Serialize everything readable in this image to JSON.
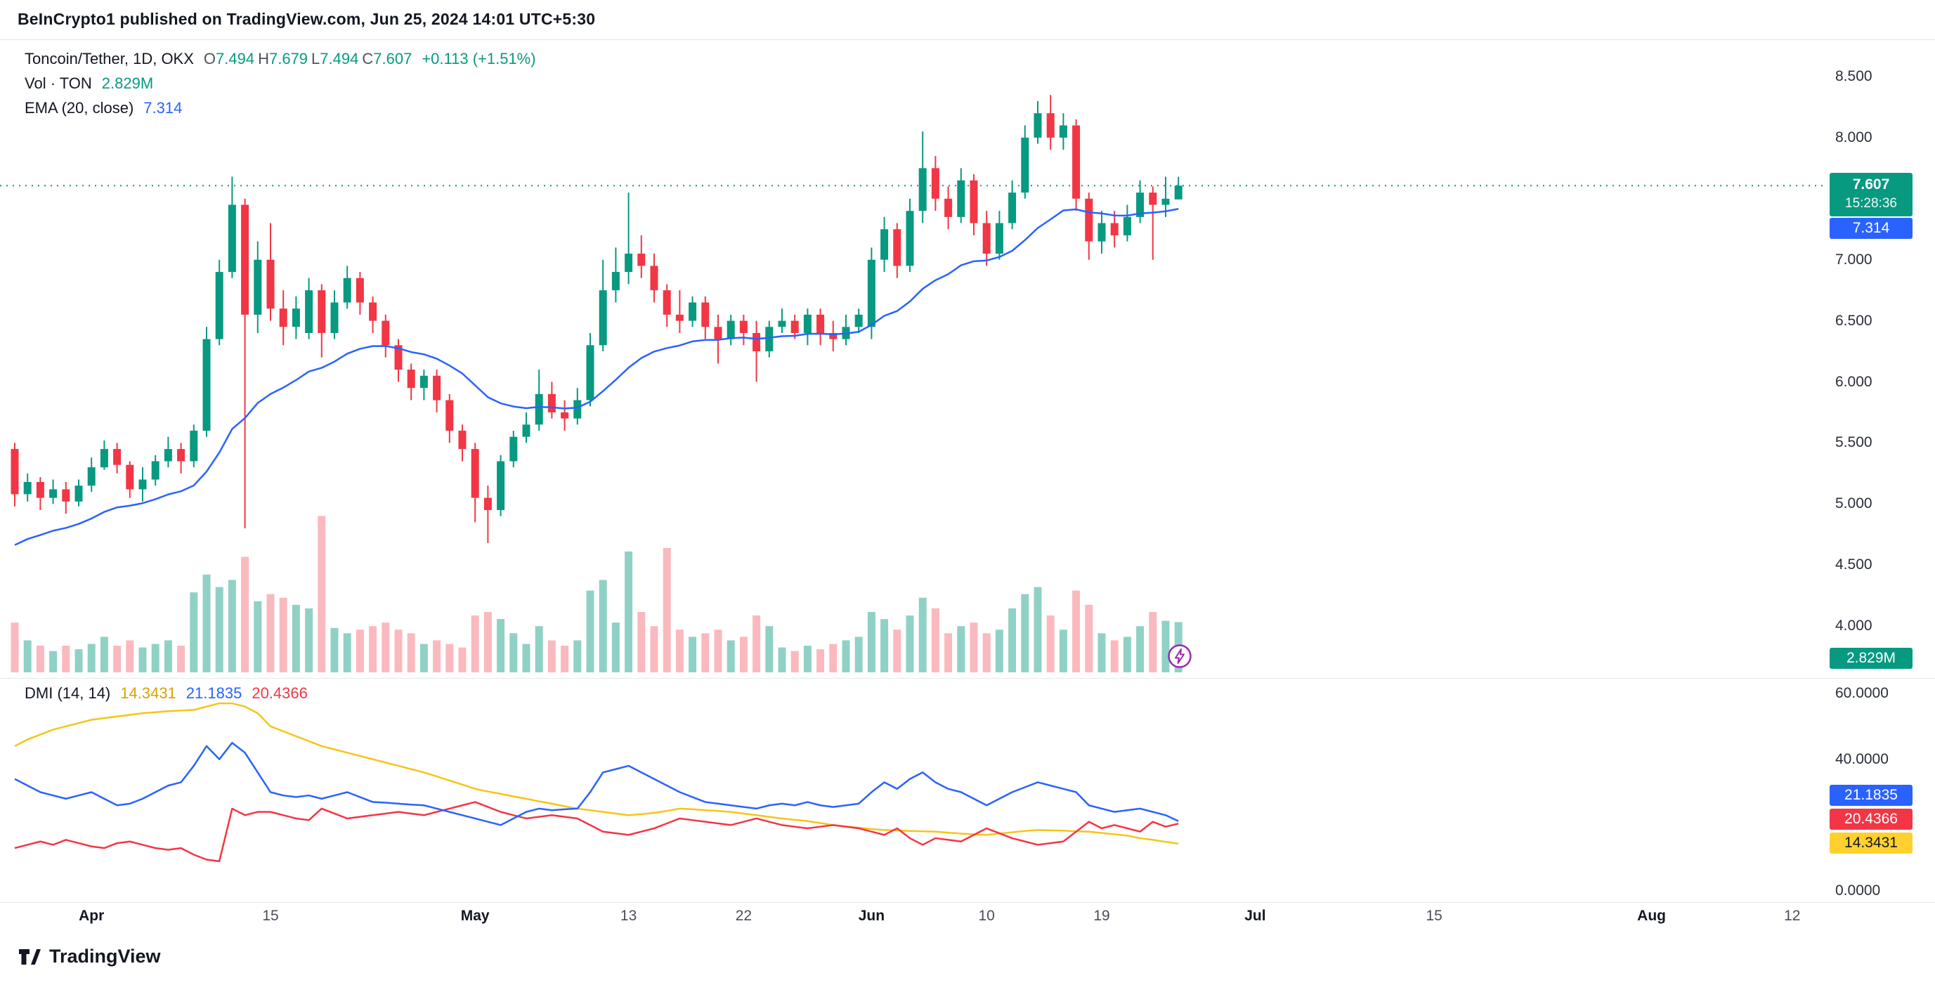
{
  "header": {
    "text": "BeInCrypto1 published on TradingView.com, Jun 25, 2024 14:01 UTC+5:30"
  },
  "legend": {
    "symbol": "Toncoin/Tether, 1D, OKX",
    "o_label": "O",
    "o": "7.494",
    "h_label": "H",
    "h": "7.679",
    "l_label": "L",
    "l": "7.494",
    "c_label": "C",
    "c": "7.607",
    "change": "+0.113 (+1.51%)",
    "vol_label": "Vol · TON",
    "vol_value": "2.829M",
    "ema_label": "EMA (20, close)",
    "ema_value": "7.314",
    "dmi_label": "DMI (14, 14)",
    "dmi_adx": "14.3431",
    "dmi_plus": "21.1835",
    "dmi_minus": "20.4366"
  },
  "badges": {
    "price": "7.607",
    "countdown": "15:28:36",
    "ema": "7.314",
    "volume": "2.829M",
    "dmi_plus": "21.1835",
    "dmi_minus": "20.4366",
    "dmi_adx": "14.3431"
  },
  "footer": {
    "brand": "TradingView"
  },
  "colors": {
    "up": "#089981",
    "down": "#f23645",
    "vol_up": "rgba(8,153,129,0.45)",
    "vol_down": "rgba(242,54,69,0.35)",
    "ema": "#2962ff",
    "adx": "#f5c518",
    "plus_di": "#2962ff",
    "minus_di": "#f23645",
    "last_price_line": "#089981",
    "flash_icon": "#9c27b0"
  },
  "chart_data": {
    "type": "candlestick",
    "title": "Toncoin/Tether, 1D, OKX",
    "symbol": "Toncoin/Tether",
    "interval": "1D",
    "exchange": "OKX",
    "start_date": "2024-03-26",
    "end_date": "2024-06-25",
    "grid": false,
    "legend_position": "top-left",
    "price_range": [
      3.95,
      8.6
    ],
    "last": {
      "open": 7.494,
      "high": 7.679,
      "low": 7.494,
      "close": 7.607,
      "change_abs": 0.113,
      "change_pct": 1.51
    },
    "price_axis": [
      "8.500",
      "8.000",
      "7.000",
      "6.500",
      "6.000",
      "5.500",
      "5.000",
      "4.500",
      "4.000"
    ],
    "dmi_axis": [
      "60.0000",
      "40.0000",
      "0.0000"
    ],
    "time_axis": [
      {
        "label": "Apr",
        "day": 6,
        "major": true
      },
      {
        "label": "15",
        "day": 20,
        "major": false
      },
      {
        "label": "May",
        "day": 36,
        "major": true
      },
      {
        "label": "13",
        "day": 48,
        "major": false
      },
      {
        "label": "22",
        "day": 57,
        "major": false
      },
      {
        "label": "Jun",
        "day": 67,
        "major": true
      },
      {
        "label": "10",
        "day": 76,
        "major": false
      },
      {
        "label": "19",
        "day": 85,
        "major": false
      },
      {
        "label": "Jul",
        "day": 97,
        "major": true
      },
      {
        "label": "15",
        "day": 111,
        "major": false
      },
      {
        "label": "Aug",
        "day": 128,
        "major": true
      },
      {
        "label": "12",
        "day": 139,
        "major": false
      }
    ],
    "candles_format": [
      "open",
      "high",
      "low",
      "close",
      "volume_millions"
    ],
    "candles": [
      [
        5.45,
        5.5,
        4.98,
        5.08,
        2.8
      ],
      [
        5.08,
        5.25,
        5.02,
        5.18,
        1.8
      ],
      [
        5.18,
        5.22,
        4.95,
        5.05,
        1.5
      ],
      [
        5.05,
        5.2,
        5.0,
        5.12,
        1.2
      ],
      [
        5.12,
        5.18,
        4.92,
        5.02,
        1.5
      ],
      [
        5.02,
        5.2,
        4.98,
        5.15,
        1.3
      ],
      [
        5.15,
        5.38,
        5.1,
        5.3,
        1.6
      ],
      [
        5.3,
        5.52,
        5.28,
        5.45,
        2.0
      ],
      [
        5.45,
        5.5,
        5.25,
        5.32,
        1.5
      ],
      [
        5.32,
        5.35,
        5.05,
        5.12,
        1.8
      ],
      [
        5.12,
        5.3,
        5.02,
        5.2,
        1.4
      ],
      [
        5.2,
        5.4,
        5.15,
        5.35,
        1.6
      ],
      [
        5.35,
        5.55,
        5.3,
        5.45,
        1.8
      ],
      [
        5.45,
        5.5,
        5.25,
        5.35,
        1.5
      ],
      [
        5.35,
        5.65,
        5.3,
        5.6,
        4.5
      ],
      [
        5.6,
        6.45,
        5.55,
        6.35,
        5.5
      ],
      [
        6.35,
        7.0,
        6.3,
        6.9,
        4.8
      ],
      [
        6.9,
        7.68,
        6.85,
        7.45,
        5.2
      ],
      [
        7.45,
        7.5,
        4.8,
        6.55,
        6.5
      ],
      [
        6.55,
        7.15,
        6.4,
        7.0,
        4.0
      ],
      [
        7.0,
        7.3,
        6.5,
        6.6,
        4.4
      ],
      [
        6.6,
        6.75,
        6.3,
        6.45,
        4.2
      ],
      [
        6.45,
        6.7,
        6.35,
        6.6,
        3.8
      ],
      [
        6.4,
        6.85,
        6.35,
        6.75,
        3.6
      ],
      [
        6.75,
        6.8,
        6.2,
        6.4,
        8.8
      ],
      [
        6.4,
        6.75,
        6.35,
        6.65,
        2.5
      ],
      [
        6.65,
        6.95,
        6.6,
        6.85,
        2.2
      ],
      [
        6.85,
        6.9,
        6.55,
        6.65,
        2.4
      ],
      [
        6.65,
        6.7,
        6.4,
        6.5,
        2.6
      ],
      [
        6.5,
        6.55,
        6.2,
        6.3,
        2.8
      ],
      [
        6.3,
        6.35,
        6.0,
        6.1,
        2.4
      ],
      [
        6.1,
        6.15,
        5.85,
        5.95,
        2.2
      ],
      [
        5.95,
        6.1,
        5.85,
        6.05,
        1.6
      ],
      [
        6.05,
        6.1,
        5.75,
        5.85,
        1.8
      ],
      [
        5.85,
        5.9,
        5.5,
        5.6,
        1.6
      ],
      [
        5.6,
        5.65,
        5.35,
        5.45,
        1.4
      ],
      [
        5.45,
        5.5,
        4.85,
        5.05,
        3.2
      ],
      [
        5.05,
        5.15,
        4.68,
        4.95,
        3.4
      ],
      [
        4.95,
        5.4,
        4.9,
        5.35,
        3.0
      ],
      [
        5.35,
        5.6,
        5.3,
        5.55,
        2.2
      ],
      [
        5.55,
        5.75,
        5.5,
        5.65,
        1.6
      ],
      [
        5.65,
        6.1,
        5.6,
        5.9,
        2.6
      ],
      [
        5.9,
        6.0,
        5.7,
        5.75,
        1.8
      ],
      [
        5.75,
        5.85,
        5.6,
        5.7,
        1.5
      ],
      [
        5.7,
        5.95,
        5.65,
        5.85,
        1.8
      ],
      [
        5.85,
        6.4,
        5.8,
        6.3,
        4.6
      ],
      [
        6.3,
        7.0,
        6.25,
        6.75,
        5.2
      ],
      [
        6.75,
        7.1,
        6.65,
        6.9,
        2.8
      ],
      [
        6.9,
        7.55,
        6.8,
        7.05,
        6.8
      ],
      [
        7.05,
        7.2,
        6.85,
        6.95,
        3.4
      ],
      [
        6.95,
        7.05,
        6.65,
        6.75,
        2.6
      ],
      [
        6.75,
        6.8,
        6.45,
        6.55,
        7.0
      ],
      [
        6.55,
        6.75,
        6.4,
        6.5,
        2.4
      ],
      [
        6.5,
        6.7,
        6.45,
        6.65,
        2.0
      ],
      [
        6.65,
        6.7,
        6.35,
        6.45,
        2.2
      ],
      [
        6.45,
        6.55,
        6.15,
        6.35,
        2.4
      ],
      [
        6.35,
        6.55,
        6.3,
        6.5,
        1.8
      ],
      [
        6.5,
        6.55,
        6.3,
        6.4,
        2.0
      ],
      [
        6.4,
        6.5,
        6.0,
        6.25,
        3.2
      ],
      [
        6.25,
        6.5,
        6.2,
        6.45,
        2.6
      ],
      [
        6.45,
        6.6,
        6.4,
        6.5,
        1.4
      ],
      [
        6.5,
        6.55,
        6.35,
        6.4,
        1.2
      ],
      [
        6.4,
        6.6,
        6.3,
        6.55,
        1.5
      ],
      [
        6.55,
        6.6,
        6.3,
        6.4,
        1.3
      ],
      [
        6.4,
        6.5,
        6.25,
        6.35,
        1.6
      ],
      [
        6.35,
        6.55,
        6.3,
        6.45,
        1.8
      ],
      [
        6.45,
        6.6,
        6.4,
        6.55,
        2.0
      ],
      [
        6.45,
        7.1,
        6.35,
        7.0,
        3.4
      ],
      [
        7.0,
        7.35,
        6.9,
        7.25,
        3.0
      ],
      [
        7.25,
        7.3,
        6.85,
        6.95,
        2.4
      ],
      [
        6.95,
        7.5,
        6.9,
        7.4,
        3.2
      ],
      [
        7.4,
        8.05,
        7.3,
        7.75,
        4.2
      ],
      [
        7.75,
        7.85,
        7.4,
        7.5,
        3.6
      ],
      [
        7.5,
        7.6,
        7.25,
        7.35,
        2.2
      ],
      [
        7.35,
        7.75,
        7.3,
        7.65,
        2.6
      ],
      [
        7.65,
        7.7,
        7.2,
        7.3,
        2.8
      ],
      [
        7.3,
        7.4,
        6.95,
        7.05,
        2.2
      ],
      [
        7.05,
        7.4,
        7.0,
        7.3,
        2.4
      ],
      [
        7.3,
        7.65,
        7.25,
        7.55,
        3.6
      ],
      [
        7.55,
        8.1,
        7.5,
        8.0,
        4.4
      ],
      [
        8.0,
        8.3,
        7.95,
        8.2,
        4.8
      ],
      [
        8.2,
        8.35,
        7.9,
        8.0,
        3.2
      ],
      [
        8.0,
        8.2,
        7.9,
        8.1,
        2.4
      ],
      [
        8.1,
        8.15,
        7.4,
        7.5,
        4.6
      ],
      [
        7.5,
        7.55,
        7.0,
        7.15,
        3.8
      ],
      [
        7.15,
        7.4,
        7.05,
        7.3,
        2.2
      ],
      [
        7.3,
        7.4,
        7.1,
        7.2,
        1.8
      ],
      [
        7.2,
        7.45,
        7.15,
        7.35,
        2.0
      ],
      [
        7.35,
        7.65,
        7.3,
        7.55,
        2.6
      ],
      [
        7.55,
        7.6,
        7.0,
        7.45,
        3.4
      ],
      [
        7.45,
        7.68,
        7.35,
        7.5,
        2.9
      ],
      [
        7.494,
        7.679,
        7.494,
        7.607,
        2.829
      ]
    ],
    "ema": {
      "period": 20,
      "source": "close",
      "last": 7.314,
      "seed": 4.62
    },
    "volume": {
      "label": "Vol · TON",
      "last": 2.829,
      "unit": "M"
    },
    "dmi": {
      "period": 14,
      "smoothing": 14,
      "last": {
        "adx": 14.3431,
        "plus_di": 21.1835,
        "minus_di": 20.4366
      },
      "range": [
        0,
        60
      ],
      "adx": [
        44,
        46,
        47.5,
        49,
        50,
        51,
        52,
        52.5,
        53,
        53.5,
        54,
        54.3,
        54.6,
        54.8,
        55,
        56,
        57,
        57,
        56,
        54,
        50,
        48.5,
        47,
        45.5,
        44,
        43,
        42,
        41,
        40,
        39,
        38,
        37,
        36,
        34.8,
        33.5,
        32.3,
        31,
        30.2,
        29.5,
        28.7,
        28,
        27.2,
        26.5,
        25.7,
        25,
        24.5,
        24,
        23.5,
        23,
        23.3,
        23.7,
        24.3,
        25,
        24.8,
        24.5,
        24.3,
        24,
        23.5,
        23,
        22.5,
        22,
        21.6,
        21.2,
        20.6,
        20,
        19.6,
        19.2,
        18.8,
        18.5,
        18.4,
        18.2,
        18.1,
        18,
        17.7,
        17.4,
        17.2,
        17,
        17.4,
        17.8,
        18.2,
        18.5,
        18.4,
        18.3,
        18.1,
        18,
        17.6,
        17.2,
        16.8,
        16,
        15.5,
        14.9,
        14.3431
      ],
      "plus": [
        34,
        32,
        30,
        29,
        28,
        29,
        30,
        28,
        26,
        26.5,
        28,
        30,
        32,
        33,
        38,
        44,
        40,
        45,
        42,
        36,
        30,
        29,
        28.5,
        29,
        28,
        29,
        30,
        28.5,
        27,
        26.8,
        26.5,
        26.2,
        26,
        25,
        24,
        23,
        22,
        21,
        20,
        22,
        24,
        25,
        24.5,
        24.8,
        25,
        30,
        36,
        37,
        38,
        36,
        34,
        32,
        30,
        28.5,
        27,
        26.5,
        26,
        25.5,
        25,
        26,
        26.5,
        26,
        27,
        26,
        25.5,
        26,
        26.5,
        30,
        33,
        31,
        34,
        36,
        33,
        31,
        30,
        28,
        26,
        28,
        30,
        31.5,
        33,
        32,
        31,
        30,
        26,
        25,
        24,
        24.5,
        25,
        24,
        23,
        21.1835
      ],
      "minus": [
        13,
        14,
        15,
        14,
        15.5,
        14.5,
        13.5,
        13,
        14.5,
        15,
        14,
        13,
        12.5,
        13,
        11,
        9.5,
        9,
        25,
        23,
        24,
        24,
        23,
        22,
        21.5,
        25,
        23.5,
        22,
        22.5,
        23,
        23.5,
        24,
        23.5,
        23,
        24,
        25,
        26,
        27,
        25.5,
        24,
        23,
        22,
        22.5,
        23,
        22.5,
        22,
        20,
        18,
        17.5,
        17,
        18,
        19,
        20.5,
        22,
        21.5,
        21,
        20.5,
        20,
        21,
        22,
        21,
        20,
        19.5,
        19,
        19.5,
        20,
        19.5,
        19,
        18,
        17,
        19,
        16,
        14,
        16,
        15.5,
        15,
        17,
        19,
        17.5,
        16,
        15,
        14,
        14.5,
        15,
        18,
        21,
        19,
        20,
        19,
        18,
        21,
        19.5,
        20.4366
      ]
    }
  }
}
